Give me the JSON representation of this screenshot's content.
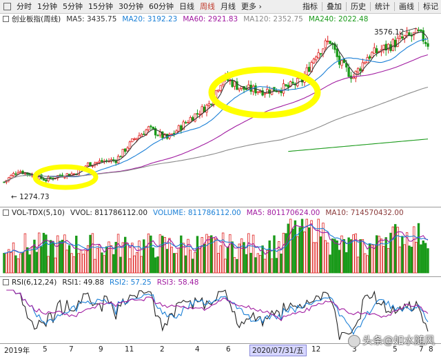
{
  "toolbar": {
    "left": [
      "分时",
      "1分钟",
      "5分钟",
      "15分钟",
      "30分钟",
      "60分钟",
      "日线",
      "周线",
      "月线",
      "更多"
    ],
    "active": "周线",
    "right": [
      "指标",
      "叠加",
      "历史",
      "统计",
      "画线",
      "标记"
    ]
  },
  "price_legend": {
    "name": "创业板指(周线)",
    "items": [
      {
        "label": "MA5: 3435.75",
        "color": "#333333"
      },
      {
        "label": "MA20: 3192.23",
        "color": "#1a7fd6"
      },
      {
        "label": "MA60: 2921.83",
        "color": "#a01aa0"
      },
      {
        "label": "MA120: 2352.75",
        "color": "#8a8a8a"
      },
      {
        "label": "MA240: 2022.48",
        "color": "#1a9a1a"
      }
    ],
    "high_label": "3576.12",
    "low_label": "1274.73"
  },
  "volume_legend": {
    "name": "VOL-TDX(5,10)",
    "items": [
      {
        "label": "VVOL: 811786112.00",
        "color": "#222222"
      },
      {
        "label": "VOLUME: 811786112.00",
        "color": "#1a7fd6"
      },
      {
        "label": "MA5: 801170624.00",
        "color": "#a01aa0"
      },
      {
        "label": "MA10: 714570432.00",
        "color": "#8a3a3a"
      }
    ]
  },
  "rsi_legend": {
    "name": "RSI(6,12,24)",
    "items": [
      {
        "label": "RSI1: 49.88",
        "color": "#222222"
      },
      {
        "label": "RSI2: 57.25",
        "color": "#1a7fd6"
      },
      {
        "label": "RSI3: 58.48",
        "color": "#a01aa0"
      }
    ]
  },
  "x_axis": {
    "labels": [
      "2019年",
      "5",
      "7",
      "9",
      "11",
      "2",
      "4",
      "6",
      "12",
      "3",
      "5",
      "7",
      "8"
    ],
    "highlight": "2020/07/31/五"
  },
  "watermark": "头条@如水随风",
  "highlights": [
    "yellow-circle-left",
    "yellow-circle-middle"
  ],
  "colors": {
    "up": "#e02020",
    "down": "#1a9a1a",
    "highlight": "#ffff00"
  }
}
